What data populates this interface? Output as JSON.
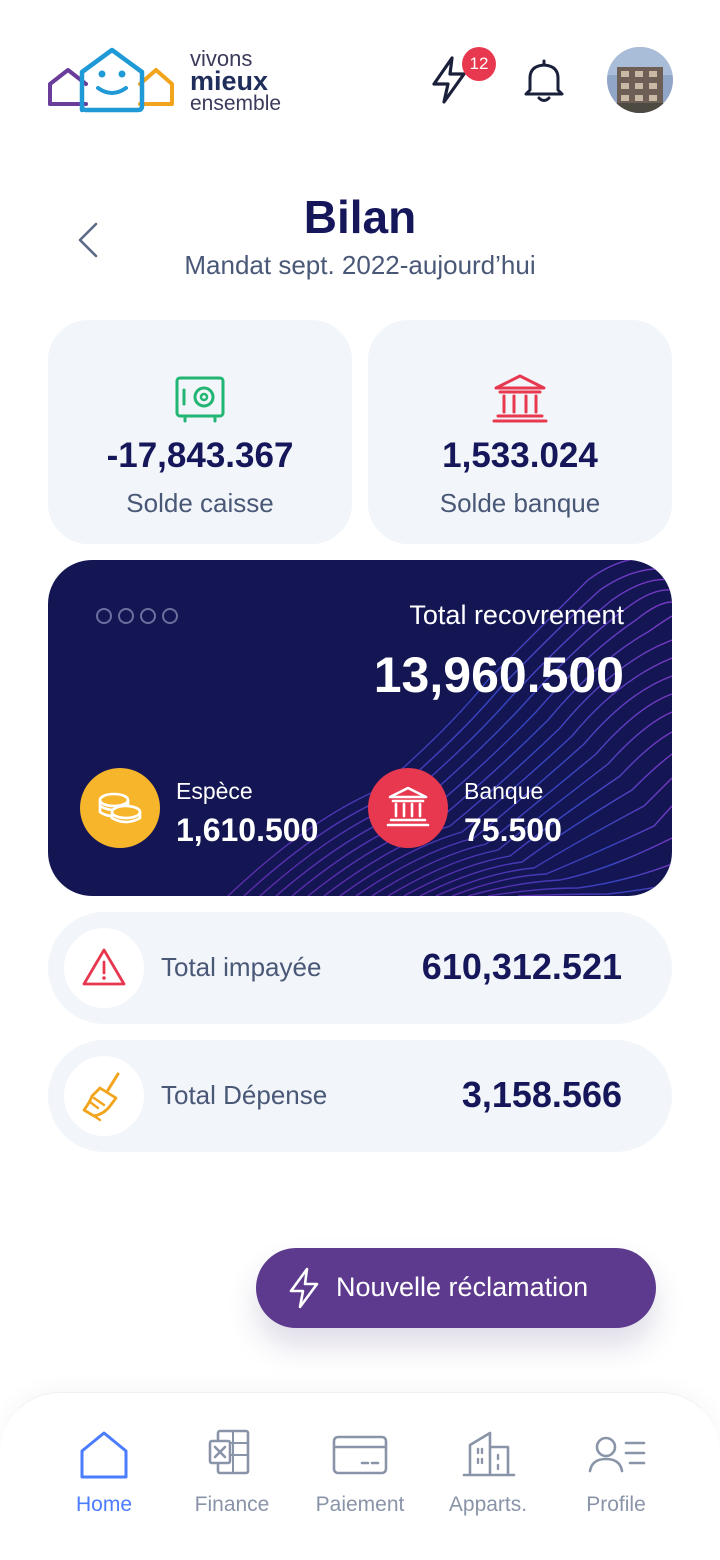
{
  "header": {
    "logo": {
      "line1": "vivons",
      "line2": "mieux",
      "line3": "ensemble"
    },
    "flash_badge_count": "12",
    "icons": {
      "flash": "flash-icon",
      "notifications": "bell-icon",
      "avatar": "avatar-building"
    }
  },
  "page": {
    "title": "Bilan",
    "subtitle": "Mandat sept. 2022-aujourd’hui"
  },
  "balances": {
    "caisse": {
      "value": "-17,843.367",
      "label": "Solde caisse",
      "icon": "safe-icon",
      "color": "#22b573"
    },
    "banque": {
      "value": "1,533.024",
      "label": "Solde banque",
      "icon": "bank-icon",
      "color": "#e8384f"
    }
  },
  "recouvrement": {
    "label": "Total recovrement",
    "value": "13,960.500",
    "espece": {
      "label": "Espèce",
      "value": "1,610.500",
      "icon": "coins-icon",
      "color": "#f7b52c"
    },
    "banque": {
      "label": "Banque",
      "value": "75.500",
      "icon": "bank-icon",
      "color": "#e8384f"
    }
  },
  "totals": {
    "impayee": {
      "label": "Total impayée",
      "value": "610,312.521",
      "icon": "warning-icon",
      "color": "#e8384f"
    },
    "depense": {
      "label": "Total Dépense",
      "value": "3,158.566",
      "icon": "broom-icon",
      "color": "#f7b52c"
    }
  },
  "fab": {
    "label": "Nouvelle réclamation",
    "icon": "flash-icon",
    "color": "#5e3a8e"
  },
  "nav": {
    "items": [
      {
        "label": "Home",
        "icon": "home-icon",
        "active": true
      },
      {
        "label": "Finance",
        "icon": "spreadsheet-icon",
        "active": false
      },
      {
        "label": "Paiement",
        "icon": "card-icon",
        "active": false
      },
      {
        "label": "Apparts.",
        "icon": "building-icon",
        "active": false
      },
      {
        "label": "Profile",
        "icon": "profile-icon",
        "active": false
      }
    ]
  }
}
